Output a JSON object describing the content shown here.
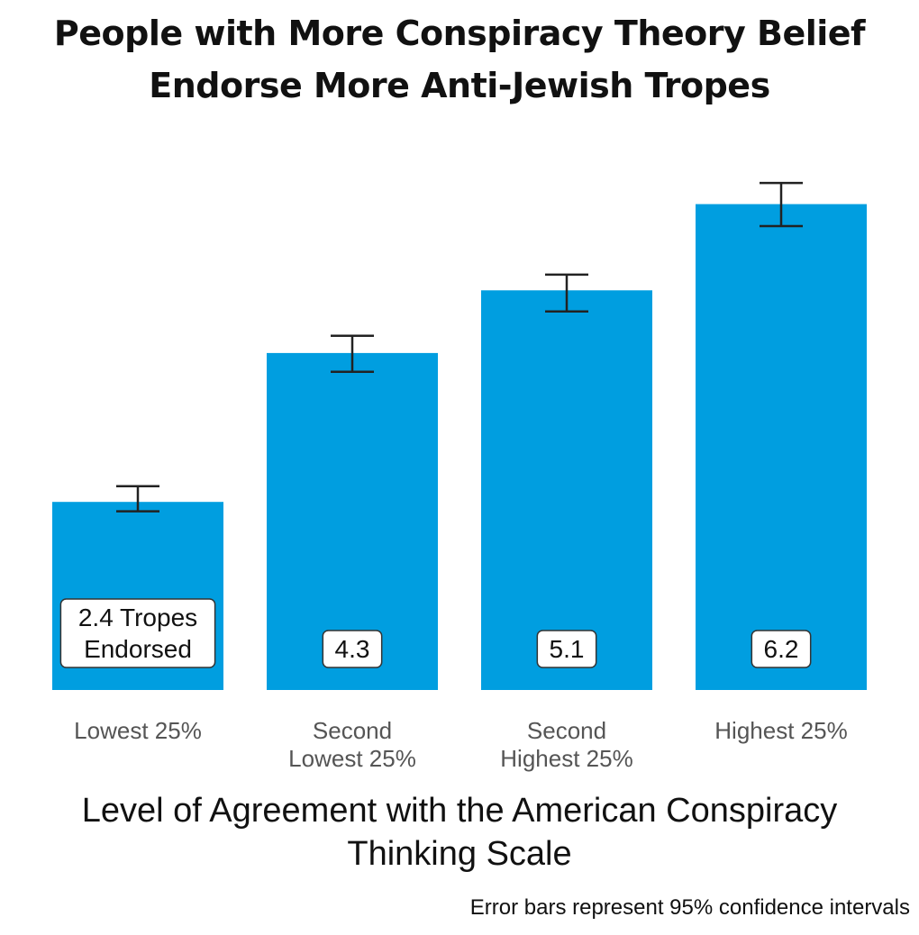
{
  "chart_data": {
    "type": "bar",
    "title": [
      "People with More Conspiracy Theory Belief",
      "Endorse More Anti-Jewish Tropes"
    ],
    "categories": [
      [
        "Lowest 25%"
      ],
      [
        "Second",
        "Lowest 25%"
      ],
      [
        "Second",
        "Highest 25%"
      ],
      [
        "Highest 25%"
      ]
    ],
    "values": [
      2.4,
      4.3,
      5.1,
      6.2
    ],
    "error_low": [
      2.28,
      4.06,
      4.83,
      5.92
    ],
    "error_high": [
      2.6,
      4.52,
      5.3,
      6.47
    ],
    "data_labels": [
      [
        "2.4 Tropes",
        "Endorsed"
      ],
      [
        "4.3"
      ],
      [
        "5.1"
      ],
      [
        "6.2"
      ]
    ],
    "xlabel": [
      "Level of Agreement with the American Conspiracy",
      "Thinking Scale"
    ],
    "ylabel": "",
    "ylim": [
      0,
      6.5
    ],
    "note": "Error bars represent 95% confidence intervals",
    "bar_color": "#009ee0",
    "errorbar_color": "#222222",
    "grid": false,
    "legend": "none"
  }
}
